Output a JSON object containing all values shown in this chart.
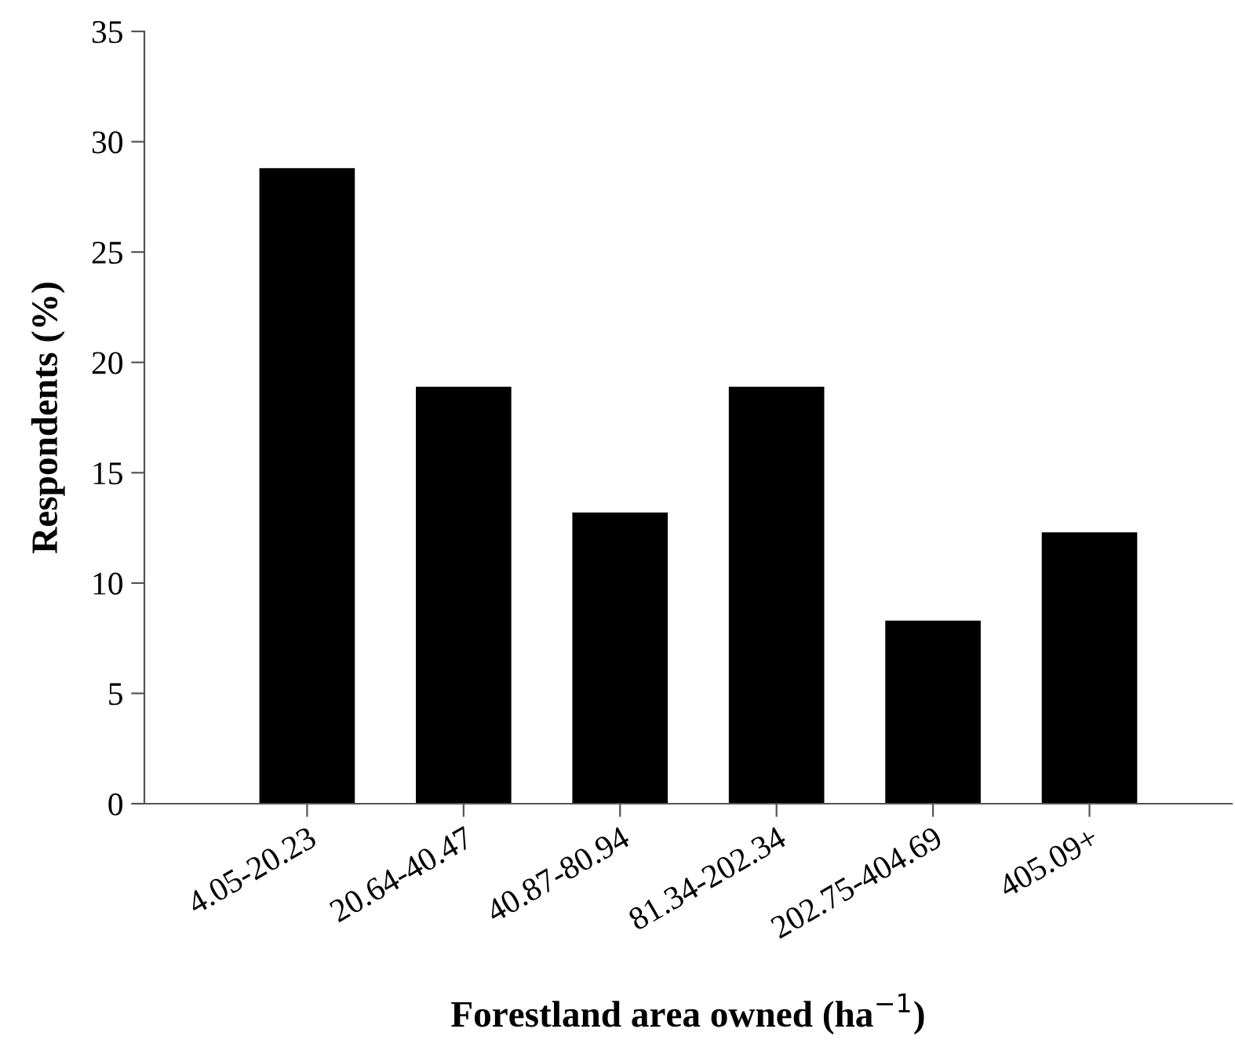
{
  "chart_data": {
    "type": "bar",
    "categories": [
      "4.05-20.23",
      "20.64-40.47",
      "40.87-80.94",
      "81.34-202.34",
      "202.75-404.69",
      "405.09+"
    ],
    "values": [
      28.8,
      18.9,
      13.2,
      18.9,
      8.3,
      12.3
    ],
    "color": "#000000",
    "xlabel": "Forestland area owned (ha$^{−1}$)",
    "ylabel": "Respondents (%)",
    "ylim": [
      0,
      35
    ],
    "yticks": [
      0,
      5,
      10,
      15,
      20,
      25,
      30,
      35
    ],
    "grid": false,
    "legend": false
  }
}
